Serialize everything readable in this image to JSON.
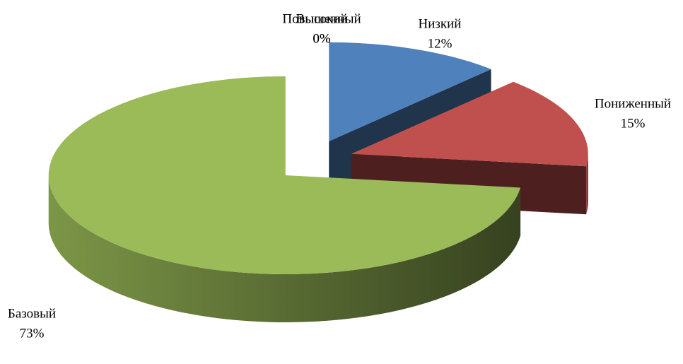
{
  "chart_data": {
    "type": "pie3d",
    "categories": [
      "Низкий",
      "Пониженный",
      "Базовый",
      "Повышенный",
      "Высокий"
    ],
    "values": [
      12,
      15,
      73,
      0,
      0
    ],
    "value_labels": [
      "12%",
      "15%",
      "73%",
      "0%",
      "0%"
    ],
    "colors": [
      "#4f81bd",
      "#c0504d",
      "#9bbb59",
      "#8064a2",
      "#4bacc6"
    ]
  }
}
